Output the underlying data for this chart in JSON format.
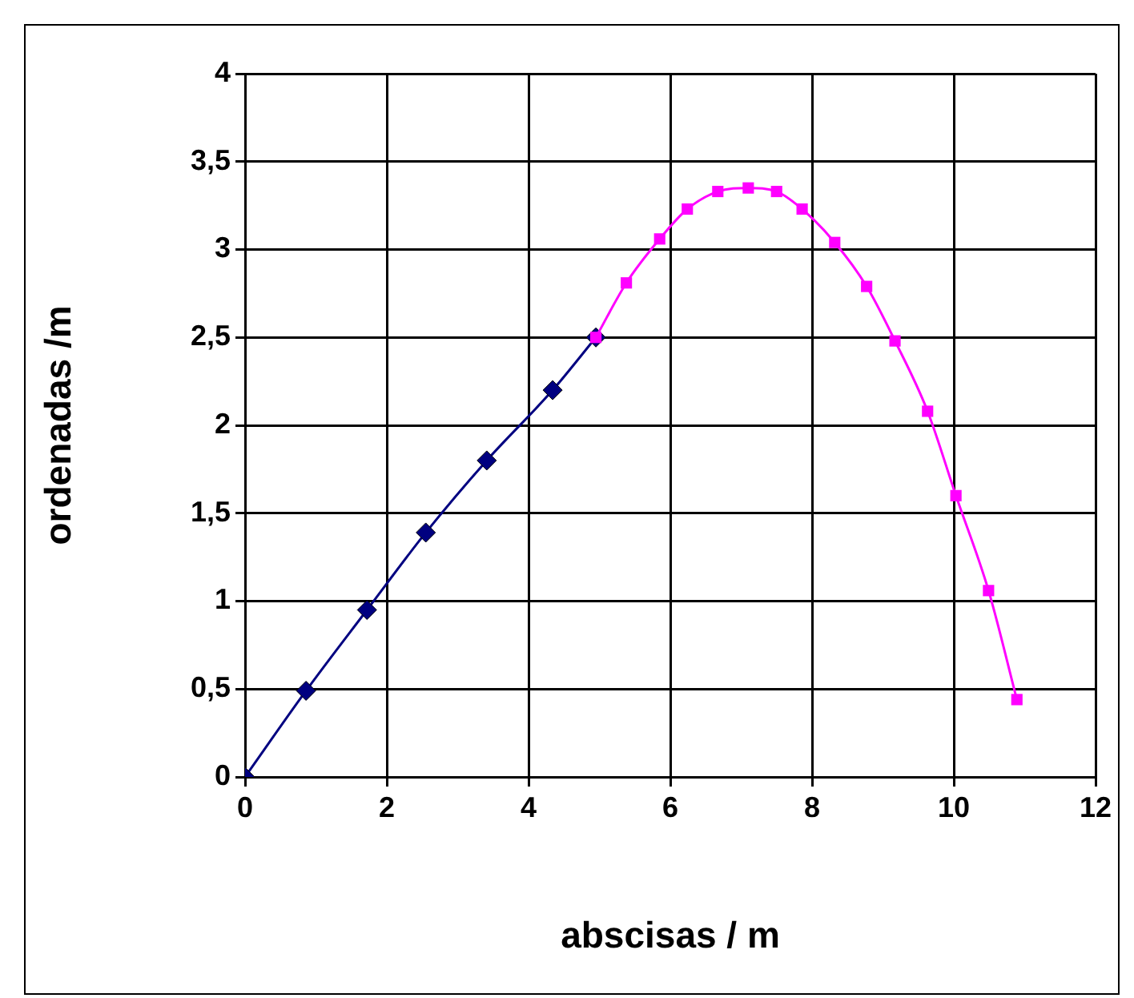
{
  "chart_data": {
    "type": "line",
    "xlabel": "abscisas / m",
    "ylabel": "ordenadas /m",
    "xlim": [
      0,
      12
    ],
    "xticks": [
      0,
      2,
      4,
      6,
      8,
      10,
      12
    ],
    "ylim": [
      0,
      4
    ],
    "yticks": [
      0,
      {
        "value": 0.5,
        "label": "0,5"
      },
      1,
      {
        "value": 1.5,
        "label": "1,5"
      },
      2,
      {
        "value": 2.5,
        "label": "2,5"
      },
      3,
      {
        "value": 3.5,
        "label": "3,5"
      },
      4
    ],
    "grid": true,
    "legend": false,
    "series": [
      {
        "color": "#000080",
        "marker": "diamond",
        "x": [
          0,
          0.86,
          1.72,
          2.55,
          3.41,
          4.34,
          4.95
        ],
        "values": [
          0,
          0.49,
          0.95,
          1.39,
          1.8,
          2.2,
          2.5
        ]
      },
      {
        "color": "#ff00ff",
        "marker": "square",
        "x": [
          4.95,
          5.38,
          5.85,
          6.24,
          6.67,
          7.1,
          7.5,
          7.86,
          8.32,
          8.77,
          9.17,
          9.63,
          10.03,
          10.49,
          10.89
        ],
        "values": [
          2.5,
          2.81,
          3.06,
          3.23,
          3.33,
          3.35,
          3.33,
          3.23,
          3.04,
          2.79,
          2.48,
          2.08,
          1.6,
          1.06,
          0.44
        ]
      }
    ]
  }
}
